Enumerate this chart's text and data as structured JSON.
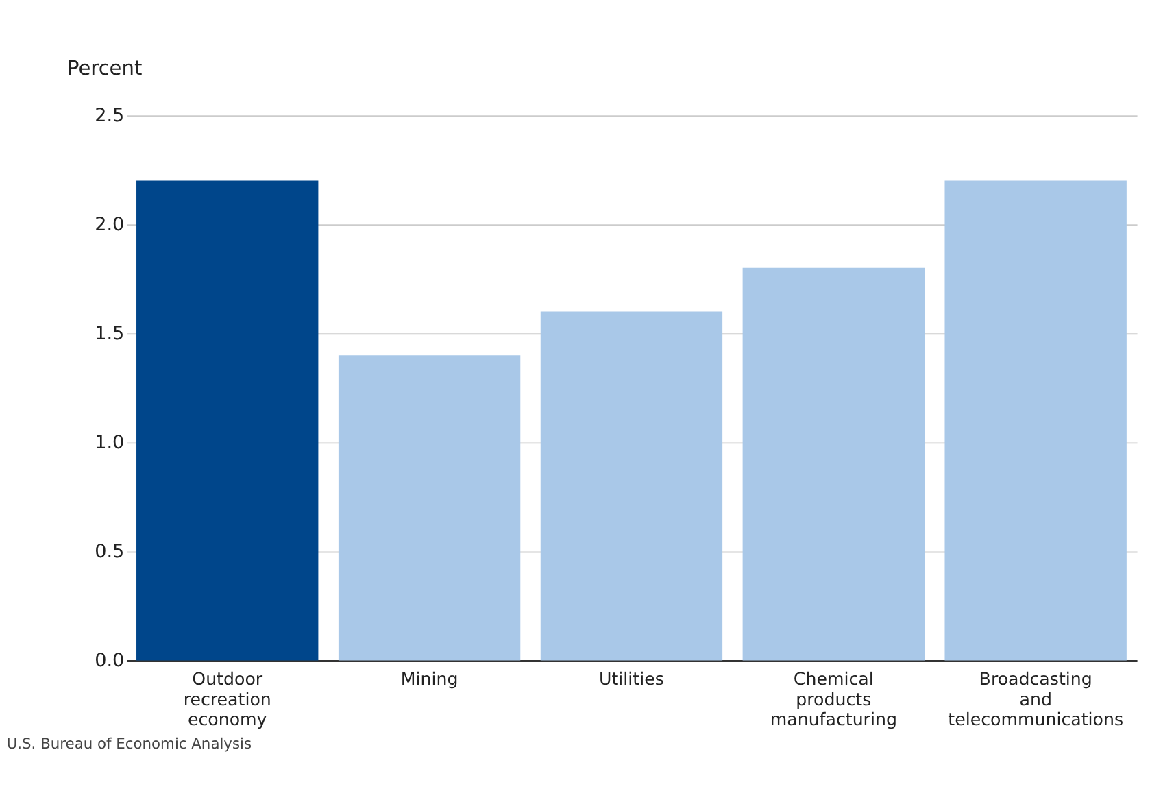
{
  "chart_data": {
    "type": "bar",
    "categories": [
      "Outdoor recreation economy",
      "Mining",
      "Utilities",
      "Chemical products manufacturing",
      "Broadcasting and telecommunications"
    ],
    "values": [
      2.2,
      1.4,
      1.6,
      1.8,
      2.2
    ],
    "colors": [
      "#00468b",
      "#a9c8e8",
      "#a9c8e8",
      "#a9c8e8",
      "#a9c8e8"
    ],
    "ylabel": "Percent",
    "ylim": [
      0,
      2.5
    ],
    "yticks": [
      {
        "value": 0,
        "label": "0.0"
      },
      {
        "value": 0.5,
        "label": "0.5"
      },
      {
        "value": 1,
        "label": "1.0"
      },
      {
        "value": 1.5,
        "label": "1.5"
      },
      {
        "value": 2,
        "label": "2.0"
      },
      {
        "value": 2.5,
        "label": "2.5"
      }
    ],
    "grid": "y",
    "annotations": [
      "U.S. Bureau of Economic Analysis"
    ]
  }
}
